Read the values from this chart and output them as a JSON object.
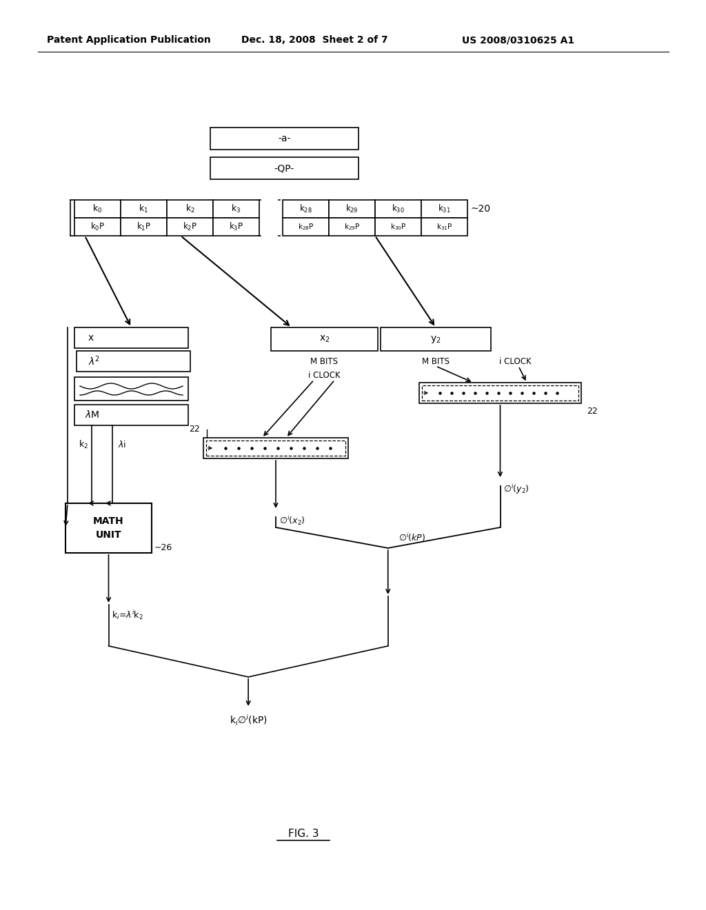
{
  "bg_color": "#ffffff",
  "header_left": "Patent Application Publication",
  "header_mid": "Dec. 18, 2008  Sheet 2 of 7",
  "header_right": "US 2008/0310625 A1",
  "fig_label": "FIG. 3"
}
